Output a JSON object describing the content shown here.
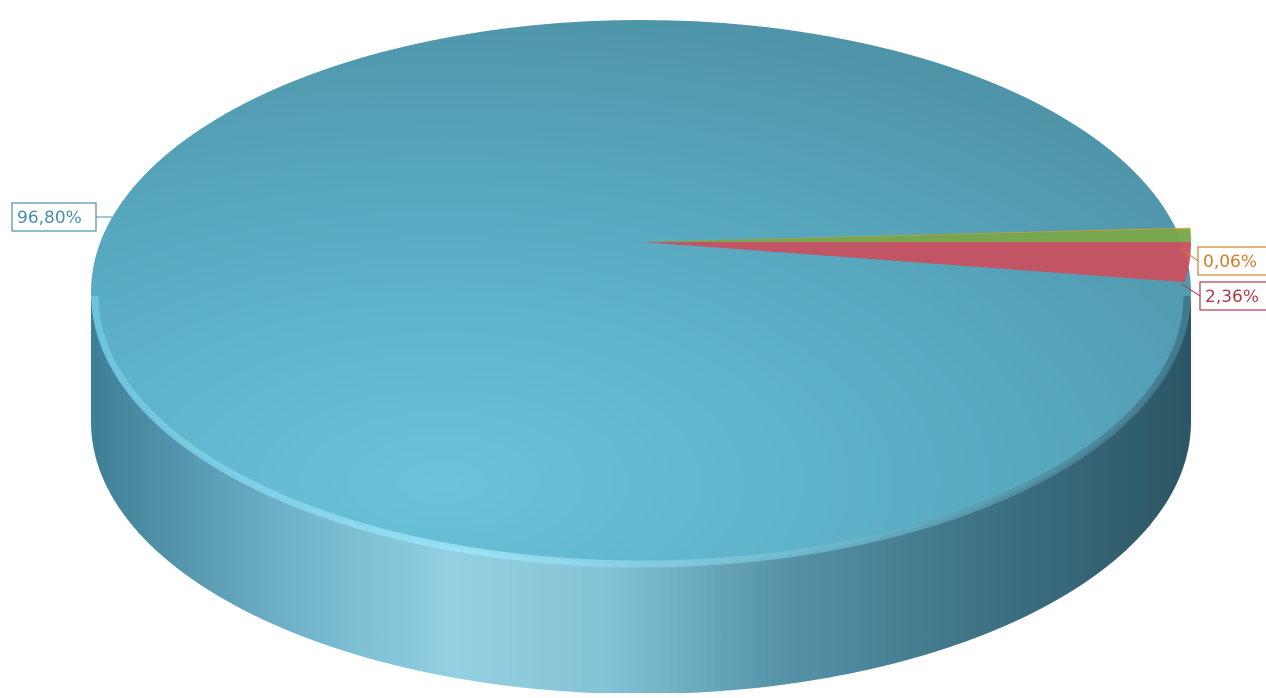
{
  "chart_data": {
    "type": "pie",
    "style": "3d",
    "legend": "none",
    "categories": [
      "",
      "",
      "",
      ""
    ],
    "values": [
      96.8,
      2.36,
      0.78,
      0.06
    ],
    "data_labels": [
      "96,80%",
      "2,36%",
      "",
      "0,06%"
    ],
    "colors": [
      "#5aaec5",
      "#c85060",
      "#7aa64a",
      "#d6a020"
    ],
    "label_colors": [
      "#4a8fa8",
      "#b03848",
      "#6b9a3f",
      "#d07f2a"
    ]
  }
}
